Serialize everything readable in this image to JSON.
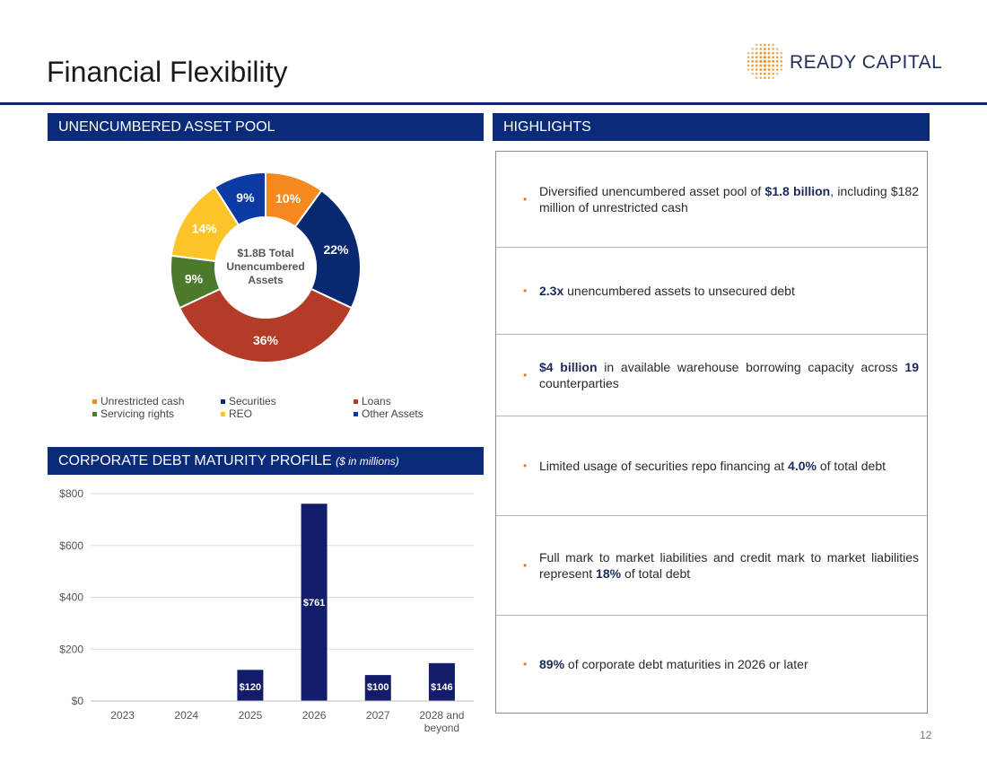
{
  "header": {
    "title": "Financial Flexibility",
    "logo_text": "READY CAPITAL"
  },
  "sections": {
    "pool": "UNENCUMBERED ASSET POOL",
    "highlights": "HIGHLIGHTS",
    "debt": "CORPORATE DEBT MATURITY PROFILE",
    "debt_note": "($ in millions)"
  },
  "highlights": [
    {
      "pre": "Diversified unencumbered asset pool of ",
      "bold": "$1.8 billion",
      "post": ", including $182 million of unrestricted cash"
    },
    {
      "pre": "",
      "bold": "2.3x",
      "post": " unencumbered assets to unsecured debt"
    },
    {
      "pre": "",
      "bold": "$4 billion",
      "post": " in available warehouse borrowing capacity across ",
      "bold2": "19",
      "post2": " counterparties"
    },
    {
      "pre": "Limited usage of securities repo financing at ",
      "bold": "4.0%",
      "post": " of total debt"
    },
    {
      "pre": "Full mark to market liabilities and credit mark to market liabilities represent ",
      "bold": "18%",
      "post": " of total debt"
    },
    {
      "pre": "",
      "bold": "89%",
      "post": " of corporate debt maturities in 2026 or later"
    }
  ],
  "page_number": "12",
  "colors": {
    "navy": "#0a2a7a",
    "orange": "#f5891f",
    "dark_blue": "#08296f",
    "red": "#b33b27",
    "green": "#4b7a2c",
    "yellow": "#fdc42a",
    "blue": "#0b3aa5",
    "bar": "#131b6b",
    "accent": "#e07b21"
  },
  "chart_data": [
    {
      "type": "pie",
      "title": "Unencumbered Asset Pool",
      "center_label": [
        "$1.8B Total",
        "Unencumbered",
        "Assets"
      ],
      "categories": [
        "Unrestricted cash",
        "Securities",
        "Loans",
        "Servicing rights",
        "REO",
        "Other Assets"
      ],
      "values": [
        10,
        22,
        36,
        9,
        14,
        9
      ],
      "labels": [
        "10%",
        "22%",
        "36%",
        "9%",
        "14%",
        "9%"
      ],
      "colors": [
        "#f5891f",
        "#08296f",
        "#b33b27",
        "#4b7a2c",
        "#fdc42a",
        "#0b3aa5"
      ],
      "legend": [
        "Unrestricted cash",
        "Securities",
        "Loans",
        "Servicing rights",
        "REO",
        "Other Assets"
      ]
    },
    {
      "type": "bar",
      "title": "Corporate Debt Maturity Profile",
      "categories": [
        "2023",
        "2024",
        "2025",
        "2026",
        "2027",
        "2028 and beyond"
      ],
      "values": [
        0,
        0,
        120,
        761,
        100,
        146
      ],
      "labels": [
        "",
        "",
        "$120",
        "$761",
        "$100",
        "$146"
      ],
      "y_ticks": [
        "$0",
        "$200",
        "$400",
        "$600",
        "$800"
      ],
      "y_tick_values": [
        0,
        200,
        400,
        600,
        800
      ],
      "ylim": [
        0,
        800
      ]
    }
  ]
}
